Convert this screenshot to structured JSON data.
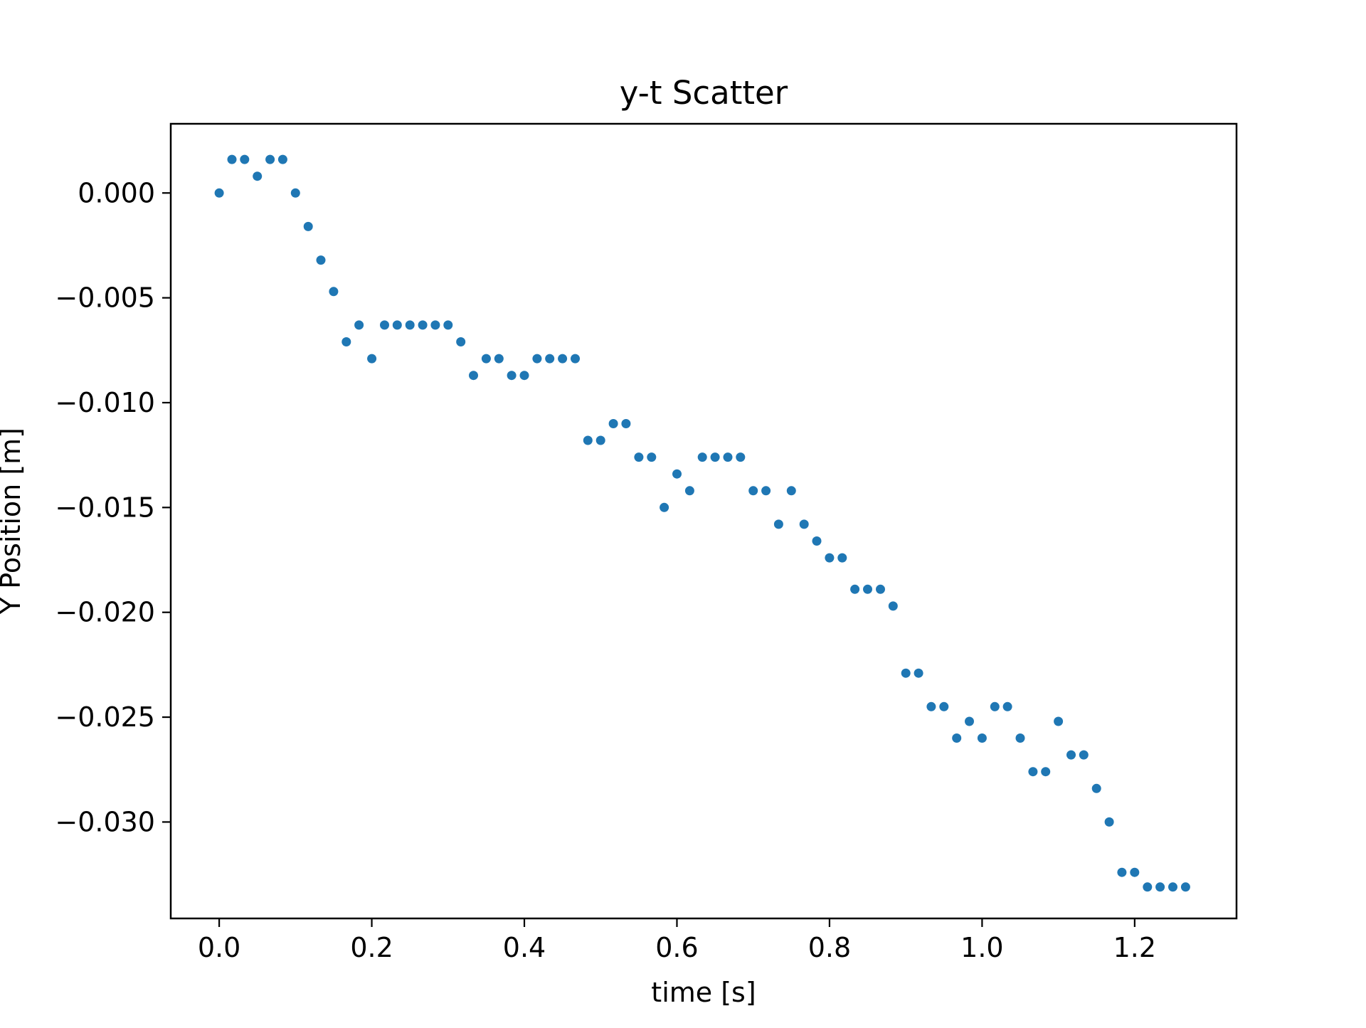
{
  "colors": {
    "marker": "#1f77b4",
    "axes": "#000000",
    "background": "#ffffff"
  },
  "chart_data": {
    "type": "scatter",
    "title": "y-t Scatter",
    "xlabel": "time [s]",
    "ylabel": "Y Position [m]",
    "xlim": [
      -0.0635,
      1.3335
    ],
    "ylim": [
      -0.0346,
      0.0033
    ],
    "grid": false,
    "xticks": [
      {
        "value": 0.0,
        "label": "0.0"
      },
      {
        "value": 0.2,
        "label": "0.2"
      },
      {
        "value": 0.4,
        "label": "0.4"
      },
      {
        "value": 0.6,
        "label": "0.6"
      },
      {
        "value": 0.8,
        "label": "0.8"
      },
      {
        "value": 1.0,
        "label": "1.0"
      },
      {
        "value": 1.2,
        "label": "1.2"
      }
    ],
    "yticks": [
      {
        "value": 0.0,
        "label": "0.000"
      },
      {
        "value": -0.005,
        "label": "−0.005"
      },
      {
        "value": -0.01,
        "label": "−0.010"
      },
      {
        "value": -0.015,
        "label": "−0.015"
      },
      {
        "value": -0.02,
        "label": "−0.020"
      },
      {
        "value": -0.025,
        "label": "−0.025"
      },
      {
        "value": -0.03,
        "label": "−0.030"
      }
    ],
    "series": [
      {
        "points": [
          [
            0.0,
            0.0
          ],
          [
            0.0167,
            0.0016
          ],
          [
            0.0333,
            0.0016
          ],
          [
            0.05,
            0.0008
          ],
          [
            0.0667,
            0.0016
          ],
          [
            0.0833,
            0.0016
          ],
          [
            0.1,
            0.0
          ],
          [
            0.1167,
            -0.0016
          ],
          [
            0.1333,
            -0.0032
          ],
          [
            0.15,
            -0.0047
          ],
          [
            0.1667,
            -0.0071
          ],
          [
            0.1833,
            -0.0063
          ],
          [
            0.2,
            -0.0079
          ],
          [
            0.2167,
            -0.0063
          ],
          [
            0.2333,
            -0.0063
          ],
          [
            0.25,
            -0.0063
          ],
          [
            0.2667,
            -0.0063
          ],
          [
            0.2833,
            -0.0063
          ],
          [
            0.3,
            -0.0063
          ],
          [
            0.3167,
            -0.0071
          ],
          [
            0.3333,
            -0.0087
          ],
          [
            0.35,
            -0.0079
          ],
          [
            0.3667,
            -0.0079
          ],
          [
            0.3833,
            -0.0087
          ],
          [
            0.4,
            -0.0087
          ],
          [
            0.4167,
            -0.0079
          ],
          [
            0.4333,
            -0.0079
          ],
          [
            0.45,
            -0.0079
          ],
          [
            0.4667,
            -0.0079
          ],
          [
            0.4833,
            -0.0118
          ],
          [
            0.5,
            -0.0118
          ],
          [
            0.5167,
            -0.011
          ],
          [
            0.5333,
            -0.011
          ],
          [
            0.55,
            -0.0126
          ],
          [
            0.5667,
            -0.0126
          ],
          [
            0.5833,
            -0.015
          ],
          [
            0.6,
            -0.0134
          ],
          [
            0.6167,
            -0.0142
          ],
          [
            0.6333,
            -0.0126
          ],
          [
            0.65,
            -0.0126
          ],
          [
            0.6667,
            -0.0126
          ],
          [
            0.6833,
            -0.0126
          ],
          [
            0.7,
            -0.0142
          ],
          [
            0.7167,
            -0.0142
          ],
          [
            0.7333,
            -0.0158
          ],
          [
            0.75,
            -0.0142
          ],
          [
            0.7667,
            -0.0158
          ],
          [
            0.7833,
            -0.0166
          ],
          [
            0.8,
            -0.0174
          ],
          [
            0.8167,
            -0.0174
          ],
          [
            0.8333,
            -0.0189
          ],
          [
            0.85,
            -0.0189
          ],
          [
            0.8667,
            -0.0189
          ],
          [
            0.8833,
            -0.0197
          ],
          [
            0.9,
            -0.0229
          ],
          [
            0.9167,
            -0.0229
          ],
          [
            0.9333,
            -0.0245
          ],
          [
            0.95,
            -0.0245
          ],
          [
            0.9667,
            -0.026
          ],
          [
            0.9833,
            -0.0252
          ],
          [
            1.0,
            -0.026
          ],
          [
            1.0167,
            -0.0245
          ],
          [
            1.0333,
            -0.0245
          ],
          [
            1.05,
            -0.026
          ],
          [
            1.0667,
            -0.0276
          ],
          [
            1.0833,
            -0.0276
          ],
          [
            1.1,
            -0.0252
          ],
          [
            1.1167,
            -0.0268
          ],
          [
            1.1333,
            -0.0268
          ],
          [
            1.15,
            -0.0284
          ],
          [
            1.1667,
            -0.03
          ],
          [
            1.1833,
            -0.0324
          ],
          [
            1.2,
            -0.0324
          ],
          [
            1.2167,
            -0.0331
          ],
          [
            1.2333,
            -0.0331
          ],
          [
            1.25,
            -0.0331
          ],
          [
            1.2667,
            -0.0331
          ]
        ]
      }
    ]
  }
}
